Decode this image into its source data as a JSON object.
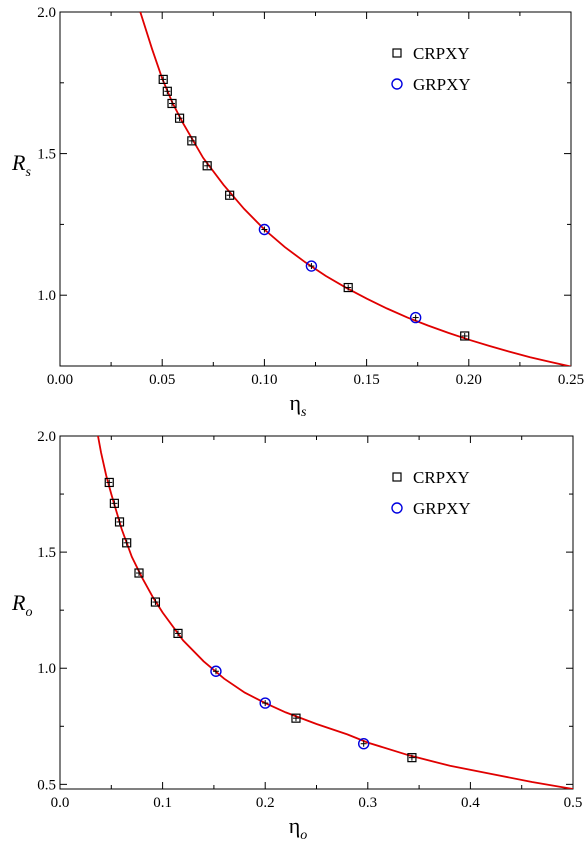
{
  "chart_data": [
    {
      "type": "scatter",
      "title": "",
      "xlabel": "η",
      "xlabel_sub": "s",
      "ylabel": "R",
      "ylabel_sub": "s",
      "xlim": [
        0.0,
        0.25
      ],
      "ylim": [
        0.75,
        2.0
      ],
      "x_ticks": [
        0.0,
        0.05,
        0.1,
        0.15,
        0.2,
        0.25
      ],
      "x_tick_labels": [
        "0.00",
        "0.05",
        "0.10",
        "0.15",
        "0.20",
        "0.25"
      ],
      "y_ticks": [
        1.0,
        1.5,
        2.0
      ],
      "y_tick_labels": [
        "1.0",
        "1.5",
        "2.0"
      ],
      "legend_position": "top-right",
      "fit_curve": {
        "color": "#e00000",
        "points": [
          [
            0.0393,
            2.0
          ],
          [
            0.045,
            1.87
          ],
          [
            0.05,
            1.765
          ],
          [
            0.055,
            1.68
          ],
          [
            0.06,
            1.61
          ],
          [
            0.07,
            1.485
          ],
          [
            0.08,
            1.39
          ],
          [
            0.09,
            1.305
          ],
          [
            0.1,
            1.232
          ],
          [
            0.11,
            1.17
          ],
          [
            0.12,
            1.116
          ],
          [
            0.13,
            1.068
          ],
          [
            0.14,
            1.026
          ],
          [
            0.15,
            0.988
          ],
          [
            0.16,
            0.953
          ],
          [
            0.17,
            0.921
          ],
          [
            0.18,
            0.893
          ],
          [
            0.19,
            0.867
          ],
          [
            0.2,
            0.843
          ],
          [
            0.21,
            0.821
          ],
          [
            0.22,
            0.8
          ],
          [
            0.23,
            0.781
          ],
          [
            0.24,
            0.764
          ],
          [
            0.25,
            0.748
          ]
        ]
      },
      "series": [
        {
          "name": "CRPXY",
          "marker": "square",
          "color": "#000000",
          "x": [
            0.0505,
            0.0525,
            0.0548,
            0.0585,
            0.0645,
            0.072,
            0.083,
            0.141,
            0.198
          ],
          "y": [
            1.762,
            1.72,
            1.677,
            1.625,
            1.545,
            1.457,
            1.353,
            1.027,
            0.856
          ]
        },
        {
          "name": "GRPXY",
          "marker": "circle",
          "color": "#0000e0",
          "x": [
            0.1,
            0.123,
            0.174
          ],
          "y": [
            1.232,
            1.103,
            0.921
          ]
        }
      ]
    },
    {
      "type": "scatter",
      "title": "",
      "xlabel": "η",
      "xlabel_sub": "o",
      "ylabel": "R",
      "ylabel_sub": "o",
      "xlim": [
        0.0,
        0.5
      ],
      "ylim": [
        0.48,
        2.0
      ],
      "x_ticks": [
        0.0,
        0.1,
        0.2,
        0.3,
        0.4,
        0.5
      ],
      "x_tick_labels": [
        "0.0",
        "0.1",
        "0.2",
        "0.3",
        "0.4",
        "0.5"
      ],
      "y_ticks": [
        0.5,
        1.0,
        1.5,
        2.0
      ],
      "y_tick_labels": [
        "0.5",
        "1.0",
        "1.5",
        "2.0"
      ],
      "legend_position": "top-right",
      "fit_curve": {
        "color": "#e00000",
        "points": [
          [
            0.037,
            2.0
          ],
          [
            0.04,
            1.93
          ],
          [
            0.045,
            1.83
          ],
          [
            0.05,
            1.75
          ],
          [
            0.06,
            1.6
          ],
          [
            0.07,
            1.48
          ],
          [
            0.08,
            1.39
          ],
          [
            0.09,
            1.31
          ],
          [
            0.1,
            1.24
          ],
          [
            0.12,
            1.12
          ],
          [
            0.14,
            1.03
          ],
          [
            0.16,
            0.955
          ],
          [
            0.18,
            0.895
          ],
          [
            0.2,
            0.85
          ],
          [
            0.22,
            0.81
          ],
          [
            0.25,
            0.76
          ],
          [
            0.28,
            0.715
          ],
          [
            0.3,
            0.68
          ],
          [
            0.34,
            0.625
          ],
          [
            0.38,
            0.58
          ],
          [
            0.42,
            0.545
          ],
          [
            0.46,
            0.51
          ],
          [
            0.5,
            0.48
          ]
        ]
      },
      "series": [
        {
          "name": "CRPXY",
          "marker": "square",
          "color": "#000000",
          "x": [
            0.048,
            0.053,
            0.058,
            0.065,
            0.077,
            0.093,
            0.115,
            0.23,
            0.343
          ],
          "y": [
            1.8,
            1.71,
            1.63,
            1.54,
            1.41,
            1.285,
            1.15,
            0.785,
            0.615
          ]
        },
        {
          "name": "GRPXY",
          "marker": "circle",
          "color": "#0000e0",
          "x": [
            0.152,
            0.2,
            0.296
          ],
          "y": [
            0.987,
            0.85,
            0.675
          ]
        }
      ]
    }
  ]
}
